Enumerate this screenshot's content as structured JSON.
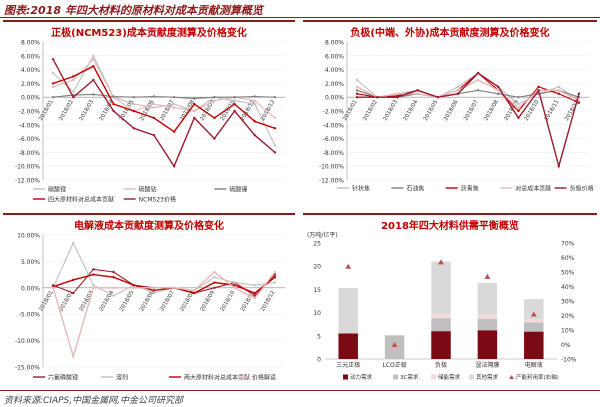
{
  "figure_title": "图表:2018 年四大材料的原材料对成本贡献测算概览",
  "source": "资料来源:CIAPS,中国金属网,中金公司研究部",
  "chart_data": [
    {
      "type": "line",
      "title": "正极(NCM523)成本贡献度测算及价格变化",
      "categories": [
        "2018/01",
        "2018/02",
        "2018/03",
        "2018/04",
        "2018/05",
        "2018/06",
        "2018/07",
        "2018/08",
        "2018/09",
        "2018/10",
        "2018/11",
        "2018/12"
      ],
      "ylim": [
        -0.12,
        0.08
      ],
      "yticks": [
        "-12.00%",
        "-10.00%",
        "-8.00%",
        "-6.00%",
        "-4.00%",
        "-2.00%",
        "0.00%",
        "2.00%",
        "4.00%",
        "6.00%",
        "8.00%"
      ],
      "colors": [
        "#bfbfbf",
        "#e6b8b7",
        "#7f7f7f",
        "#c00000",
        "#9b1b30"
      ],
      "series": [
        {
          "name": "碳酸锂",
          "values": [
            0.035,
            0.008,
            0.06,
            0.0,
            -0.01,
            -0.015,
            -0.01,
            -0.02,
            0.0,
            -0.005,
            -0.01,
            -0.07
          ]
        },
        {
          "name": "硫酸钴",
          "values": [
            0.015,
            0.025,
            0.055,
            0.0,
            -0.02,
            -0.01,
            -0.015,
            -0.02,
            -0.005,
            0.0,
            -0.005,
            -0.03
          ]
        },
        {
          "name": "硫酸镍",
          "values": [
            0.0,
            0.003,
            0.004,
            0.001,
            0.0,
            0.001,
            0.0,
            -0.002,
            0.0,
            0.0,
            0.001,
            0.0
          ]
        },
        {
          "name": "四大原材料对总成本贡献",
          "values": [
            0.02,
            0.03,
            0.045,
            -0.01,
            -0.02,
            -0.03,
            -0.05,
            -0.01,
            -0.03,
            -0.01,
            -0.035,
            -0.045
          ]
        },
        {
          "name": "NCM523价格",
          "values": [
            0.055,
            0.0,
            0.025,
            -0.02,
            -0.045,
            -0.055,
            -0.1,
            -0.03,
            -0.06,
            -0.02,
            -0.055,
            -0.08
          ]
        }
      ]
    },
    {
      "type": "line",
      "title": "负极(中端、外协)成本贡献度测算及价格变化",
      "categories": [
        "2018/01",
        "2018/02",
        "2018/03",
        "2018/04",
        "2018/05",
        "2018/06",
        "2018/07",
        "2018/08",
        "2018/09",
        "2018/10",
        "2018/11",
        "2018/12"
      ],
      "ylim": [
        -0.12,
        0.08
      ],
      "yticks": [
        "-12.00%",
        "-10.00%",
        "-8.00%",
        "-6.00%",
        "-4.00%",
        "-2.00%",
        "0.00%",
        "2.00%",
        "4.00%",
        "6.00%",
        "8.00%"
      ],
      "colors": [
        "#bfbfbf",
        "#7f7f7f",
        "#c00000",
        "#e6b8b7",
        "#9b1b30"
      ],
      "series": [
        {
          "name": "针状焦",
          "values": [
            0.025,
            0.0,
            0.005,
            0.01,
            0.0,
            0.015,
            0.035,
            0.015,
            -0.01,
            0.005,
            0.015,
            -0.005
          ]
        },
        {
          "name": "石油焦",
          "values": [
            0.01,
            0.0,
            0.0,
            0.005,
            0.0,
            0.005,
            0.01,
            0.005,
            0.0,
            0.005,
            0.01,
            0.0
          ]
        },
        {
          "name": "沥青焦",
          "values": [
            0.005,
            0.0,
            0.002,
            0.01,
            0.0,
            0.01,
            0.035,
            0.01,
            -0.02,
            0.015,
            0.005,
            -0.008
          ]
        },
        {
          "name": "对总成本贡献",
          "values": [
            0.015,
            0.0,
            0.005,
            0.005,
            0.0,
            0.01,
            0.025,
            0.01,
            -0.015,
            0.01,
            0.01,
            -0.005
          ]
        },
        {
          "name": "负极价格",
          "values": [
            0.0,
            0.0,
            0.0,
            0.01,
            0.0,
            0.005,
            0.035,
            0.015,
            -0.03,
            0.01,
            -0.1,
            0.005
          ]
        }
      ]
    },
    {
      "type": "line",
      "title": "电解液成本贡献度测算及价格变化",
      "categories": [
        "2018/01",
        "2018/02",
        "2018/03",
        "2018/04",
        "2018/05",
        "2018/06",
        "2018/07",
        "2018/08",
        "2018/09",
        "2018/10",
        "2018/11",
        "2018/12"
      ],
      "ylim": [
        -0.15,
        0.1
      ],
      "yticks": [
        "-15.00%",
        "-10.00%",
        "-5.00%",
        "0.00%",
        "5.00%",
        "10.00%"
      ],
      "colors": [
        "#9b1b30",
        "#bfbfbf",
        "#c00000",
        "#e6b8b7"
      ],
      "series": [
        {
          "name": "六氟磷酸锂",
          "values": [
            0.005,
            -0.01,
            0.035,
            0.03,
            0.005,
            0.0,
            0.0,
            -0.01,
            0.0,
            0.01,
            -0.015,
            0.025
          ]
        },
        {
          "name": "溶剂",
          "values": [
            0.0,
            0.085,
            0.005,
            -0.015,
            0.005,
            -0.01,
            0.0,
            -0.005,
            0.02,
            0.01,
            0.005,
            0.01
          ]
        },
        {
          "name": "两大原材料对总成本贡献",
          "values": [
            0.002,
            0.015,
            0.025,
            0.02,
            0.005,
            -0.005,
            0.0,
            -0.01,
            0.01,
            0.005,
            -0.01,
            0.02
          ]
        },
        {
          "name": "价格解读",
          "values": [
            0.0,
            -0.13,
            0.0,
            0.0,
            0.0,
            0.0,
            0.0,
            -0.005,
            0.03,
            0.0,
            -0.02,
            0.03
          ]
        }
      ]
    },
    {
      "type": "bar",
      "title": "2018年四大材料供需平衡概览",
      "unit_label": "(万吨/亿平)",
      "categories": [
        "三元正极",
        "LCO正极",
        "负极",
        "湿法隔膜",
        "电解液"
      ],
      "ylim": [
        0,
        25
      ],
      "yticks": [
        "0",
        "5",
        "10",
        "15",
        "20",
        "25"
      ],
      "y2lim": [
        -0.1,
        0.7
      ],
      "y2ticks": [
        "-10%",
        "0%",
        "10%",
        "20%",
        "30%",
        "40%",
        "50%",
        "60%",
        "70%"
      ],
      "colors": [
        "#7b0a14",
        "#bfbfbf",
        "#f2dcdb",
        "#d9d9d9",
        "#c0504d"
      ],
      "series": [
        {
          "name": "动力需求",
          "values": [
            5.5,
            0.0,
            6.0,
            6.2,
            5.9
          ]
        },
        {
          "name": "3C需求",
          "values": [
            0.0,
            5.1,
            2.8,
            2.5,
            2.0
          ]
        },
        {
          "name": "储能需求",
          "values": [
            0.0,
            0.0,
            1.0,
            1.0,
            0.7
          ]
        },
        {
          "name": "其他需求",
          "values": [
            9.8,
            0.0,
            11.2,
            6.7,
            4.3
          ]
        }
      ],
      "line_series": {
        "name": "产能利用率(右轴)",
        "values": [
          0.54,
          0.0,
          0.57,
          0.47,
          0.21
        ]
      }
    }
  ]
}
